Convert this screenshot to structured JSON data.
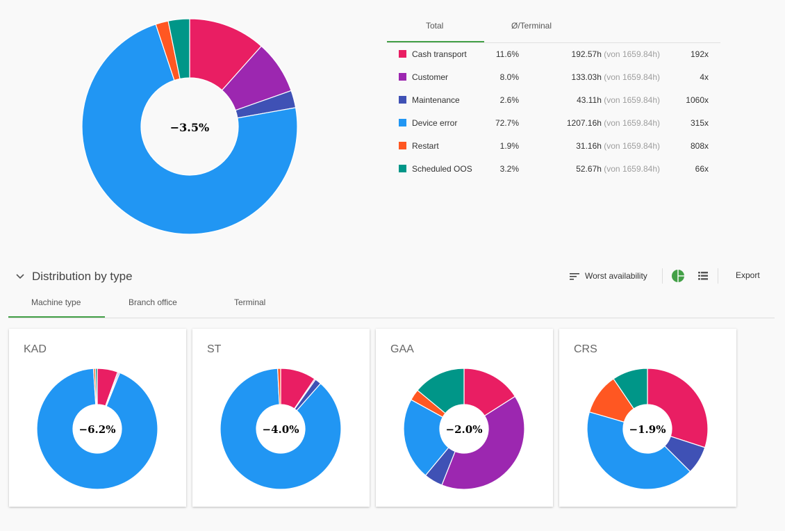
{
  "colors": {
    "cash_transport": "#e91e63",
    "customer": "#9c27b0",
    "maintenance": "#3f51b5",
    "device_error": "#2196f3",
    "restart": "#ff5722",
    "scheduled_oos": "#009688",
    "accent": "#43a047"
  },
  "summary": {
    "tabs": [
      "Total",
      "Ø/Terminal"
    ],
    "rows": [
      {
        "name": "Cash transport",
        "pct": "11.6%",
        "hours": "192.57h",
        "von": "(von 1659.84h)",
        "count": "192x",
        "color": "#e91e63"
      },
      {
        "name": "Customer",
        "pct": "8.0%",
        "hours": "133.03h",
        "von": "(von 1659.84h)",
        "count": "4x",
        "color": "#9c27b0"
      },
      {
        "name": "Maintenance",
        "pct": "2.6%",
        "hours": "43.11h",
        "von": "(von 1659.84h)",
        "count": "1060x",
        "color": "#3f51b5"
      },
      {
        "name": "Device error",
        "pct": "72.7%",
        "hours": "1207.16h",
        "von": "(von 1659.84h)",
        "count": "315x",
        "color": "#2196f3"
      },
      {
        "name": "Restart",
        "pct": "1.9%",
        "hours": "31.16h",
        "von": "(von 1659.84h)",
        "count": "808x",
        "color": "#ff5722"
      },
      {
        "name": "Scheduled OOS",
        "pct": "3.2%",
        "hours": "52.67h",
        "von": "(von 1659.84h)",
        "count": "66x",
        "color": "#009688"
      }
    ]
  },
  "distribution": {
    "title": "Distribution by type",
    "sort_label": "Worst availability",
    "export_label": "Export",
    "tabs": [
      "Machine type",
      "Branch office",
      "Terminal"
    ]
  },
  "chart_data": [
    {
      "type": "pie",
      "center_label": "−3.5%",
      "categories": [
        "Cash transport",
        "Customer",
        "Maintenance",
        "Device error",
        "Restart",
        "Scheduled OOS"
      ],
      "values": [
        11.6,
        8.0,
        2.6,
        72.7,
        1.9,
        3.2
      ]
    },
    {
      "type": "pie",
      "title": "KAD",
      "center_label": "−6.2%",
      "categories": [
        "Cash transport",
        "Customer",
        "Maintenance",
        "Device error",
        "Restart",
        "Scheduled OOS"
      ],
      "values": [
        5.5,
        0.3,
        0.3,
        92.9,
        0.5,
        0.5
      ]
    },
    {
      "type": "pie",
      "title": "ST",
      "center_label": "−4.0%",
      "categories": [
        "Cash transport",
        "Customer",
        "Maintenance",
        "Device error",
        "Restart",
        "Scheduled OOS"
      ],
      "values": [
        9.5,
        0.3,
        1.7,
        87.7,
        0.8,
        0
      ]
    },
    {
      "type": "pie",
      "title": "GAA",
      "center_label": "−2.0%",
      "categories": [
        "Cash transport",
        "Customer",
        "Maintenance",
        "Device error",
        "Restart",
        "Scheduled OOS"
      ],
      "values": [
        16,
        40,
        5,
        22,
        3,
        14
      ]
    },
    {
      "type": "pie",
      "title": "CRS",
      "center_label": "−1.9%",
      "categories": [
        "Cash transport",
        "Customer",
        "Maintenance",
        "Device error",
        "Restart",
        "Scheduled OOS"
      ],
      "values": [
        30,
        0,
        7.5,
        42,
        11,
        9.5
      ]
    }
  ]
}
